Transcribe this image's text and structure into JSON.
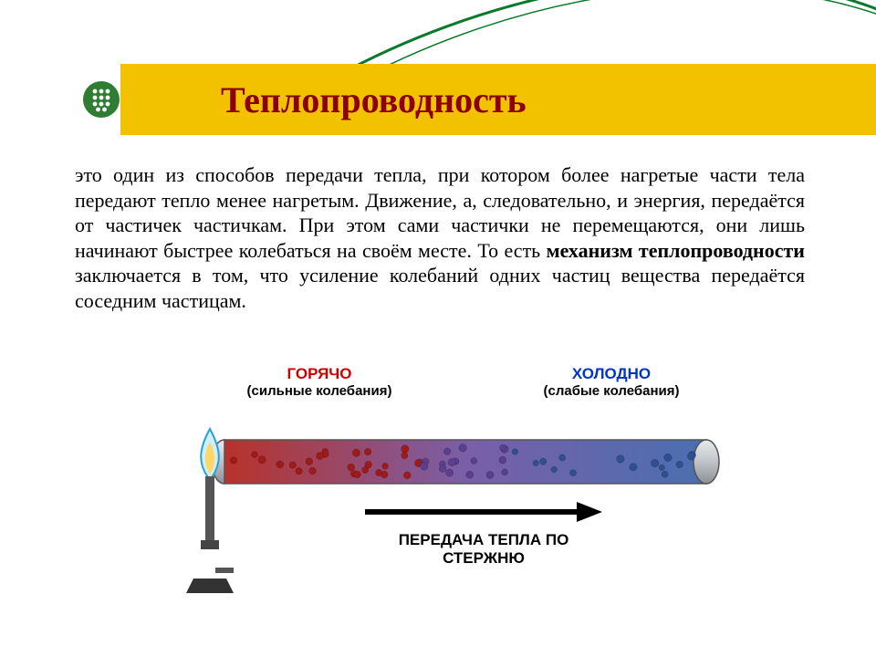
{
  "colors": {
    "banner_bg": "#f2c200",
    "title_color": "#8b0000",
    "swoosh_color": "#0a7a2a",
    "bullet_green": "#2e7d32",
    "bullet_dot": "#ffffff",
    "text_color": "#000000",
    "hot_label_color": "#cc0000",
    "cold_label_color": "#0033cc",
    "rod_border": "#555555",
    "rod_grad_start": "#b8322a",
    "rod_grad_mid": "#7a5fa8",
    "rod_grad_end": "#4a6fb0",
    "rod_cap": "#c0c4c8",
    "particle_hot": "#9e1b1b",
    "particle_mid": "#5a3f8f",
    "particle_cold": "#2f4f8f",
    "flame_outer": "#2aa0d8",
    "flame_inner": "#ffd766",
    "burner_body": "#555555",
    "burner_base": "#333333",
    "arrow_color": "#000000"
  },
  "title": {
    "text": "Теплопроводность",
    "fontsize": 40
  },
  "paragraph": {
    "fontsize": 22,
    "prefix": " это один из способов передачи тепла, при котором более нагретые части тела передают тепло менее нагретым. Движение, а, следовательно, и энергия, передаётся от частичек  частичкам. При этом сами частички не перемещаются, они лишь начинают быстрее колебаться на своём месте. То есть ",
    "bold": "механизм теплопроводности",
    "suffix": " заключается в том, что усиление колебаний одних частиц вещества передаётся соседним частицам."
  },
  "diagram": {
    "hot": {
      "title": "ГОРЯЧО",
      "sub": "(сильные колебания)",
      "fontsize_title": 17,
      "fontsize_sub": 15
    },
    "cold": {
      "title": "ХОЛОДНО",
      "sub": "(слабые колебания)",
      "fontsize_title": 17,
      "fontsize_sub": 15
    },
    "caption": {
      "line1": "ПЕРЕДАЧА ТЕПЛА ПО",
      "line2": "СТЕРЖНЮ",
      "fontsize": 17
    }
  }
}
